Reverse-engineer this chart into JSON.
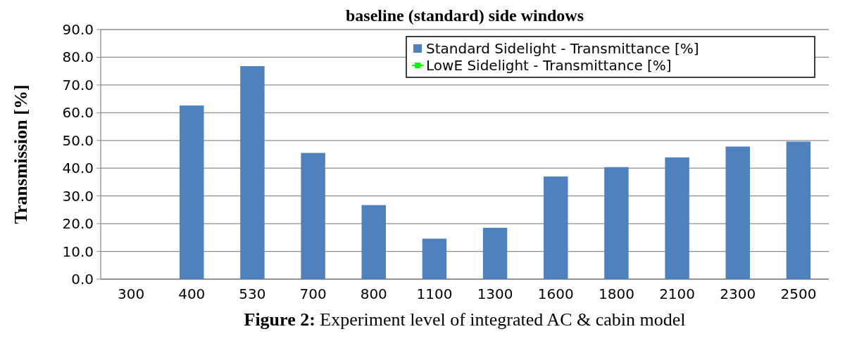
{
  "chart_data": {
    "type": "bar",
    "title": "baseline (standard) side windows",
    "ylabel": "Transmission [%]",
    "categories": [
      "300",
      "400",
      "530",
      "700",
      "800",
      "1100",
      "1300",
      "1600",
      "1800",
      "2100",
      "2300",
      "2500"
    ],
    "series": [
      {
        "name": "Standard Sidelight - Transmittance [%]",
        "color": "#4f81bd",
        "values": [
          null,
          62.6,
          76.8,
          45.5,
          26.7,
          14.6,
          18.5,
          37.0,
          40.4,
          43.9,
          47.8,
          49.6
        ]
      },
      {
        "name": "LowE Sidelight - Transmittance [%]",
        "type": "line",
        "color": "#00ff00",
        "marker": "square",
        "values": [
          null,
          null,
          null,
          null,
          null,
          null,
          null,
          null,
          null,
          null,
          null,
          null
        ]
      }
    ],
    "ylim": [
      0,
      90
    ],
    "yticks": [
      {
        "value": 0,
        "label": "0.0"
      },
      {
        "value": 10,
        "label": "10.0"
      },
      {
        "value": 20,
        "label": "20.0"
      },
      {
        "value": 30,
        "label": "30.0"
      },
      {
        "value": 40,
        "label": "40.0"
      },
      {
        "value": 50,
        "label": "50.0"
      },
      {
        "value": 60,
        "label": "60.0"
      },
      {
        "value": 70,
        "label": "70.0"
      },
      {
        "value": 80,
        "label": "80.0"
      },
      {
        "value": 90,
        "label": "90.0"
      }
    ],
    "grid": "y",
    "legend": "top right",
    "annotations": [
      "Figure 2:  Experiment level of integrated AC & cabin model"
    ]
  }
}
